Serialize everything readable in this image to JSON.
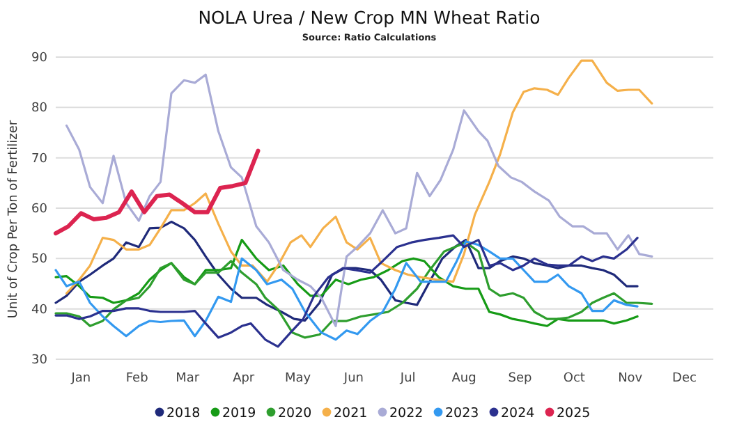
{
  "chart_data": {
    "type": "line",
    "title": "NOLA Urea / New Crop MN Wheat Ratio",
    "subtitle": "Source: Ratio Calculations",
    "ylabel": "Unit of Crop Per Ton of Fertilizer",
    "xlim": [
      "--01-01",
      "--12-31"
    ],
    "ylim": [
      30,
      90
    ],
    "yticks": [
      30,
      40,
      50,
      60,
      70,
      80,
      90
    ],
    "xticks": [
      {
        "value": "--01-15",
        "label": "Jan"
      },
      {
        "value": "--02-15",
        "label": "Feb"
      },
      {
        "value": "--03-15",
        "label": "Mar"
      },
      {
        "value": "--04-15",
        "label": "Apr"
      },
      {
        "value": "--05-15",
        "label": "May"
      },
      {
        "value": "--06-15",
        "label": "Jun"
      },
      {
        "value": "--07-15",
        "label": "Jul"
      },
      {
        "value": "--08-15",
        "label": "Aug"
      },
      {
        "value": "--09-15",
        "label": "Sep"
      },
      {
        "value": "--10-15",
        "label": "Oct"
      },
      {
        "value": "--11-15",
        "label": "Nov"
      },
      {
        "value": "--12-15",
        "label": "Dec"
      }
    ],
    "grid": "y",
    "legend": "bottom",
    "series": [
      {
        "name": "2018",
        "color": "#1f2a7a",
        "x": [
          "--01-01",
          "--01-07",
          "--01-14",
          "--01-20",
          "--01-27",
          "--02-02",
          "--02-09",
          "--02-16",
          "--02-22",
          "--02-28",
          "--03-06",
          "--03-13",
          "--03-19",
          "--03-25",
          "--04-01",
          "--04-08",
          "--04-14",
          "--04-22",
          "--04-28",
          "--05-06",
          "--05-13",
          "--05-19",
          "--05-27",
          "--06-03",
          "--06-10",
          "--06-16",
          "--06-24",
          "--06-30",
          "--07-08",
          "--07-14",
          "--07-20",
          "--07-27",
          "--08-03",
          "--08-10",
          "--08-16",
          "--08-23",
          "--08-29",
          "--09-04",
          "--09-11",
          "--09-17",
          "--09-23",
          "--09-30",
          "--10-06",
          "--10-12",
          "--10-19",
          "--10-25",
          "--10-31",
          "--11-06",
          "--11-13",
          "--11-19"
        ],
        "values": [
          41.2,
          42.6,
          45.4,
          46.8,
          48.6,
          50,
          53.2,
          52.3,
          56,
          56.1,
          57.3,
          56,
          53.7,
          50.4,
          46.8,
          44,
          42.2,
          42.2,
          40.8,
          39.4,
          38,
          37.7,
          41.2,
          46.8,
          48.1,
          48.1,
          47.7,
          45.8,
          41.7,
          41.2,
          40.8,
          45.4,
          50,
          52.3,
          53.7,
          48.1,
          48.1,
          49.5,
          50.4,
          50,
          49.1,
          48.6,
          48.1,
          48.6,
          48.6,
          48.1,
          47.7,
          46.8,
          44.5,
          44.5
        ]
      },
      {
        "name": "2019",
        "color": "#169b16",
        "x": [
          "--01-01",
          "--01-07",
          "--01-14",
          "--01-20",
          "--01-27",
          "--02-02",
          "--02-09",
          "--02-16",
          "--02-22",
          "--02-28",
          "--03-06",
          "--03-13",
          "--03-19",
          "--03-25",
          "--04-01",
          "--04-08",
          "--04-14",
          "--04-22",
          "--04-29",
          "--05-07",
          "--05-15",
          "--05-22",
          "--05-28",
          "--06-05",
          "--06-12",
          "--06-19",
          "--06-26",
          "--07-04",
          "--07-12",
          "--07-18",
          "--07-24",
          "--08-01",
          "--08-09",
          "--08-16",
          "--08-23",
          "--08-29",
          "--09-04",
          "--09-11",
          "--09-17",
          "--09-23",
          "--09-30",
          "--10-06",
          "--10-12",
          "--10-19",
          "--10-25",
          "--10-31",
          "--11-06",
          "--11-13",
          "--11-19"
        ],
        "values": [
          46.3,
          46.5,
          44.5,
          42.4,
          42.2,
          41.2,
          41.7,
          43.1,
          45.8,
          47.7,
          49.1,
          46.3,
          44.9,
          47.7,
          47.7,
          48.1,
          53.7,
          50,
          47.7,
          48.6,
          44.9,
          42.6,
          42.6,
          45.8,
          44.9,
          45.8,
          46.3,
          47.7,
          49.5,
          50,
          49.5,
          46.3,
          44.5,
          44,
          44,
          39.4,
          38.9,
          38,
          37.6,
          37.1,
          36.6,
          38,
          37.7,
          37.7,
          37.7,
          37.7,
          37.1,
          37.7,
          38.5
        ]
      },
      {
        "name": "2020",
        "color": "#2e9e2e",
        "x": [
          "--01-01",
          "--01-07",
          "--01-14",
          "--01-20",
          "--01-27",
          "--02-02",
          "--02-09",
          "--02-16",
          "--02-22",
          "--02-28",
          "--03-06",
          "--03-13",
          "--03-19",
          "--03-25",
          "--04-01",
          "--04-08",
          "--04-14",
          "--04-22",
          "--04-27",
          "--05-04",
          "--05-12",
          "--05-19",
          "--05-27",
          "--06-03",
          "--06-11",
          "--06-19",
          "--06-26",
          "--07-04",
          "--07-12",
          "--07-20",
          "--07-27",
          "--08-04",
          "--08-10",
          "--08-16",
          "--08-23",
          "--08-29",
          "--09-04",
          "--09-11",
          "--09-17",
          "--09-23",
          "--09-30",
          "--10-06",
          "--10-12",
          "--10-19",
          "--10-25",
          "--10-31",
          "--11-06",
          "--11-13",
          "--11-19",
          "--11-27"
        ],
        "values": [
          39.1,
          39.1,
          38.5,
          36.6,
          37.6,
          39.9,
          41.7,
          42.2,
          44.5,
          48.1,
          49.1,
          45.8,
          44.9,
          47.2,
          47.2,
          49.5,
          47.2,
          44.9,
          42.2,
          39.9,
          35.3,
          34.3,
          34.9,
          37.6,
          37.6,
          38.5,
          38.9,
          39.4,
          41.2,
          44,
          47.7,
          51.4,
          52.3,
          53.2,
          51.4,
          44,
          42.6,
          43.1,
          42.2,
          39.4,
          38,
          38,
          38.3,
          39.4,
          41.2,
          42.2,
          43.1,
          41.2,
          41.2,
          41
        ]
      },
      {
        "name": "2021",
        "color": "#f5b04a",
        "x": [
          "--01-07",
          "--01-14",
          "--01-20",
          "--01-27",
          "--02-02",
          "--02-09",
          "--02-16",
          "--02-22",
          "--02-28",
          "--03-06",
          "--03-13",
          "--03-19",
          "--03-25",
          "--04-01",
          "--04-08",
          "--04-14",
          "--04-20",
          "--04-28",
          "--05-04",
          "--05-11",
          "--05-17",
          "--05-22",
          "--05-29",
          "--06-05",
          "--06-11",
          "--06-17",
          "--06-24",
          "--06-30",
          "--07-08",
          "--07-15",
          "--07-22",
          "--07-31",
          "--08-09",
          "--08-15",
          "--08-21",
          "--08-29",
          "--09-04",
          "--09-11",
          "--09-17",
          "--09-23",
          "--09-30",
          "--10-06",
          "--10-12",
          "--10-19",
          "--10-25",
          "--11-02",
          "--11-08",
          "--11-14",
          "--11-20",
          "--11-27"
        ],
        "values": [
          43.1,
          45.8,
          48.6,
          54.1,
          53.7,
          51.8,
          51.8,
          52.7,
          56,
          59.6,
          59.6,
          61,
          62.9,
          56.9,
          51.4,
          48.6,
          48.6,
          45.4,
          48.6,
          53.2,
          54.6,
          52.3,
          56,
          58.3,
          53.2,
          51.8,
          54.1,
          49.1,
          47.7,
          46.8,
          46.3,
          45.8,
          45.4,
          50.9,
          58.7,
          65.2,
          70.7,
          79,
          83.1,
          83.8,
          83.5,
          82.5,
          85.9,
          89.3,
          89.3,
          84.9,
          83.3,
          83.5,
          83.5,
          80.8
        ]
      },
      {
        "name": "2022",
        "color": "#a9abd6",
        "x": [
          "--01-07",
          "--01-14",
          "--01-20",
          "--01-27",
          "--02-02",
          "--02-09",
          "--02-16",
          "--02-22",
          "--02-28",
          "--03-06",
          "--03-13",
          "--03-19",
          "--03-25",
          "--04-01",
          "--04-08",
          "--04-14",
          "--04-22",
          "--04-29",
          "--05-07",
          "--05-15",
          "--05-22",
          "--05-28",
          "--06-05",
          "--06-11",
          "--06-17",
          "--06-24",
          "--07-01",
          "--07-08",
          "--07-14",
          "--07-20",
          "--07-27",
          "--08-02",
          "--08-09",
          "--08-15",
          "--08-23",
          "--08-28",
          "--09-03",
          "--09-10",
          "--09-16",
          "--09-23",
          "--10-01",
          "--10-07",
          "--10-14",
          "--10-20",
          "--10-26",
          "--11-02",
          "--11-08",
          "--11-14",
          "--11-20",
          "--11-27"
        ],
        "values": [
          76.4,
          71.6,
          64.2,
          61,
          70.4,
          61,
          57.5,
          62.4,
          65.2,
          82.8,
          85.4,
          84.9,
          86.5,
          75.3,
          68.1,
          66.1,
          56.4,
          53.2,
          47.7,
          45.8,
          44.5,
          42.2,
          36.6,
          50.4,
          52.3,
          55,
          59.6,
          55,
          56,
          67,
          62.4,
          65.6,
          71.6,
          79.4,
          75.3,
          73.4,
          68.4,
          66.1,
          65.2,
          63.3,
          61.5,
          58.3,
          56.4,
          56.4,
          55,
          55,
          51.8,
          54.6,
          50.9,
          50.4
        ]
      },
      {
        "name": "2023",
        "color": "#3399f0",
        "x": [
          "--01-01",
          "--01-07",
          "--01-14",
          "--01-20",
          "--01-27",
          "--02-02",
          "--02-09",
          "--02-16",
          "--02-22",
          "--02-28",
          "--03-06",
          "--03-13",
          "--03-19",
          "--03-25",
          "--04-01",
          "--04-08",
          "--04-14",
          "--04-22",
          "--04-28",
          "--05-06",
          "--05-12",
          "--05-19",
          "--05-28",
          "--06-05",
          "--06-11",
          "--06-17",
          "--06-24",
          "--07-01",
          "--07-08",
          "--07-14",
          "--07-22",
          "--07-29",
          "--08-05",
          "--08-11",
          "--08-16",
          "--08-23",
          "--08-29",
          "--09-04",
          "--09-11",
          "--09-17",
          "--09-23",
          "--09-30",
          "--10-06",
          "--10-12",
          "--10-19",
          "--10-25",
          "--10-31",
          "--11-06",
          "--11-13",
          "--11-19"
        ],
        "values": [
          47.7,
          44.5,
          45.4,
          41.2,
          38.5,
          36.6,
          34.6,
          36.6,
          37.6,
          37.4,
          37.6,
          37.7,
          34.6,
          37.6,
          42.4,
          41.4,
          50,
          47.7,
          44.9,
          45.8,
          44,
          39.4,
          35.3,
          33.9,
          35.7,
          35,
          37.6,
          39.4,
          44,
          49.1,
          45.4,
          45.4,
          45.4,
          49.5,
          53.4,
          52.7,
          51.4,
          50,
          50,
          47.7,
          45.4,
          45.4,
          46.8,
          44.5,
          43.1,
          39.6,
          39.6,
          41.7,
          40.8,
          40.5
        ]
      },
      {
        "name": "2024",
        "color": "#2b318f",
        "x": [
          "--01-01",
          "--01-07",
          "--01-14",
          "--01-20",
          "--01-27",
          "--02-02",
          "--02-09",
          "--02-16",
          "--02-22",
          "--02-28",
          "--03-06",
          "--03-13",
          "--03-19",
          "--03-25",
          "--04-01",
          "--04-08",
          "--04-14",
          "--04-19",
          "--04-27",
          "--05-04",
          "--05-11",
          "--05-18",
          "--05-24",
          "--06-01",
          "--06-09",
          "--06-16",
          "--06-24",
          "--07-01",
          "--07-09",
          "--07-17",
          "--07-24",
          "--08-01",
          "--08-09",
          "--08-15",
          "--08-23",
          "--08-29",
          "--09-04",
          "--09-11",
          "--09-17",
          "--09-23",
          "--09-30",
          "--10-06",
          "--10-12",
          "--10-19",
          "--10-25",
          "--10-31",
          "--11-06",
          "--11-13",
          "--11-19"
        ],
        "values": [
          38.7,
          38.7,
          38,
          38.5,
          39.6,
          39.6,
          40.1,
          40.1,
          39.6,
          39.4,
          39.4,
          39.4,
          39.6,
          37.1,
          34.3,
          35.3,
          36.6,
          37.1,
          33.9,
          32.5,
          35.3,
          38,
          42.6,
          46.3,
          48.1,
          47.7,
          47.2,
          49.5,
          52.3,
          53.2,
          53.7,
          54.1,
          54.6,
          52.3,
          53.7,
          48.6,
          49.1,
          47.7,
          48.6,
          50,
          48.8,
          48.6,
          48.6,
          50.4,
          49.5,
          50.4,
          50,
          51.8,
          54.1
        ]
      },
      {
        "name": "2025",
        "color": "#dc2450",
        "x": [
          "--01-01",
          "--01-08",
          "--01-15",
          "--01-22",
          "--01-29",
          "--02-05",
          "--02-12",
          "--02-19",
          "--02-26",
          "--03-05",
          "--03-12",
          "--03-19",
          "--03-26",
          "--04-02",
          "--04-09",
          "--04-16",
          "--04-23"
        ],
        "values": [
          55,
          56.4,
          59,
          57.8,
          58.1,
          59.2,
          63.3,
          59.2,
          62.4,
          62.7,
          61,
          59.2,
          59.2,
          64,
          64.4,
          65,
          71.4
        ]
      }
    ]
  }
}
